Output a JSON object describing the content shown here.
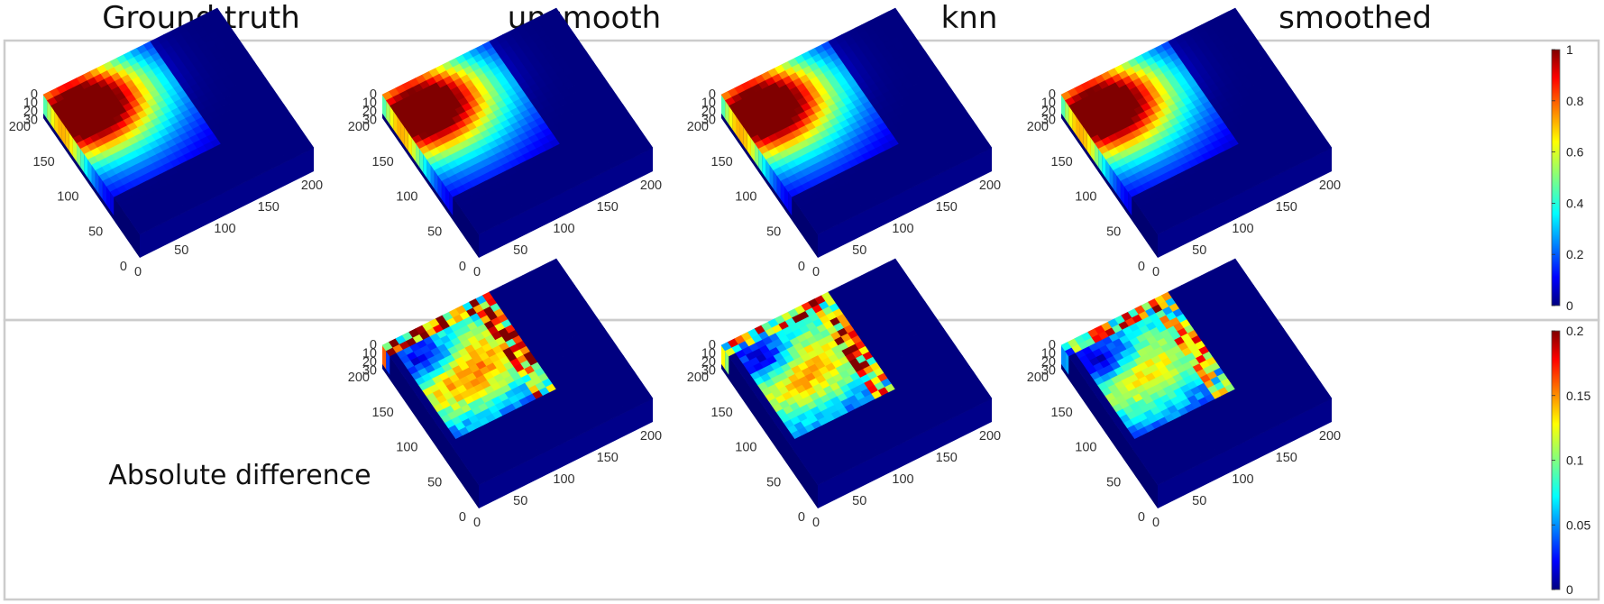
{
  "figure": {
    "column_titles": [
      "Ground truth",
      "unsmooth",
      "knn",
      "smoothed"
    ],
    "row_label": "Absolute difference"
  },
  "chart_data": [
    {
      "type": "heatmap",
      "view": "3d-box",
      "title": "Ground truth",
      "x_ticks": [
        "0",
        "50",
        "100",
        "150",
        "200"
      ],
      "y_ticks": [
        "0",
        "50",
        "100",
        "150",
        "200"
      ],
      "z_ticks": [
        "0",
        "10",
        "20",
        "30"
      ],
      "xlim": [
        0,
        200
      ],
      "ylim": [
        0,
        200
      ],
      "zlim": [
        0,
        30
      ],
      "colormap": "jet",
      "clim": [
        0,
        1
      ],
      "hotspot": {
        "x": 170,
        "y": 35,
        "peak": 1.0
      }
    },
    {
      "type": "heatmap",
      "view": "3d-box",
      "title": "unsmooth",
      "x_ticks": [
        "0",
        "50",
        "100",
        "150",
        "200"
      ],
      "y_ticks": [
        "0",
        "50",
        "100",
        "150",
        "200"
      ],
      "z_ticks": [
        "0",
        "10",
        "20",
        "30"
      ],
      "xlim": [
        0,
        200
      ],
      "ylim": [
        0,
        200
      ],
      "zlim": [
        0,
        30
      ],
      "colormap": "jet",
      "clim": [
        0,
        1
      ],
      "hotspot": {
        "x": 170,
        "y": 35,
        "peak": 0.95
      }
    },
    {
      "type": "heatmap",
      "view": "3d-box",
      "title": "knn",
      "x_ticks": [
        "0",
        "50",
        "100",
        "150",
        "200"
      ],
      "y_ticks": [
        "0",
        "50",
        "100",
        "150",
        "200"
      ],
      "z_ticks": [
        "0",
        "10",
        "20",
        "30"
      ],
      "xlim": [
        0,
        200
      ],
      "ylim": [
        0,
        200
      ],
      "zlim": [
        0,
        30
      ],
      "colormap": "jet",
      "clim": [
        0,
        1
      ],
      "hotspot": {
        "x": 170,
        "y": 35,
        "peak": 0.97
      }
    },
    {
      "type": "heatmap",
      "view": "3d-box",
      "title": "smoothed",
      "x_ticks": [
        "0",
        "50",
        "100",
        "150",
        "200"
      ],
      "y_ticks": [
        "0",
        "50",
        "100",
        "150",
        "200"
      ],
      "z_ticks": [
        "0",
        "10",
        "20",
        "30"
      ],
      "xlim": [
        0,
        200
      ],
      "ylim": [
        0,
        200
      ],
      "zlim": [
        0,
        30
      ],
      "colormap": "jet",
      "clim": [
        0,
        1
      ],
      "hotspot": {
        "x": 170,
        "y": 35,
        "peak": 0.96
      }
    },
    {
      "type": "heatmap",
      "view": "3d-box",
      "row": "Absolute difference",
      "column": "unsmooth",
      "x_ticks": [
        "0",
        "50",
        "100",
        "150",
        "200"
      ],
      "y_ticks": [
        "0",
        "50",
        "100",
        "150",
        "200"
      ],
      "z_ticks": [
        "0",
        "10",
        "20",
        "30"
      ],
      "colormap": "jet",
      "clim": [
        0,
        0.2
      ],
      "max_error": 0.2
    },
    {
      "type": "heatmap",
      "view": "3d-box",
      "row": "Absolute difference",
      "column": "knn",
      "x_ticks": [
        "0",
        "50",
        "100",
        "150",
        "200"
      ],
      "y_ticks": [
        "0",
        "50",
        "100",
        "150",
        "200"
      ],
      "z_ticks": [
        "0",
        "10",
        "20",
        "30"
      ],
      "colormap": "jet",
      "clim": [
        0,
        0.2
      ],
      "max_error": 0.19
    },
    {
      "type": "heatmap",
      "view": "3d-box",
      "row": "Absolute difference",
      "column": "smoothed",
      "x_ticks": [
        "0",
        "50",
        "100",
        "150",
        "200"
      ],
      "y_ticks": [
        "0",
        "50",
        "100",
        "150",
        "200"
      ],
      "z_ticks": [
        "0",
        "10",
        "20",
        "30"
      ],
      "colormap": "jet",
      "clim": [
        0,
        0.2
      ],
      "max_error": 0.17
    }
  ],
  "colorbars": [
    {
      "name": "top",
      "ticks": [
        "0",
        "0.2",
        "0.4",
        "0.6",
        "0.8",
        "1"
      ],
      "range": [
        0,
        1
      ],
      "colormap": "jet"
    },
    {
      "name": "bottom",
      "ticks": [
        "0",
        "0.05",
        "0.1",
        "0.15",
        "0.2"
      ],
      "range": [
        0,
        0.2
      ],
      "colormap": "jet"
    }
  ],
  "colors": {
    "frame": "#cccccc",
    "background": "#000080"
  }
}
